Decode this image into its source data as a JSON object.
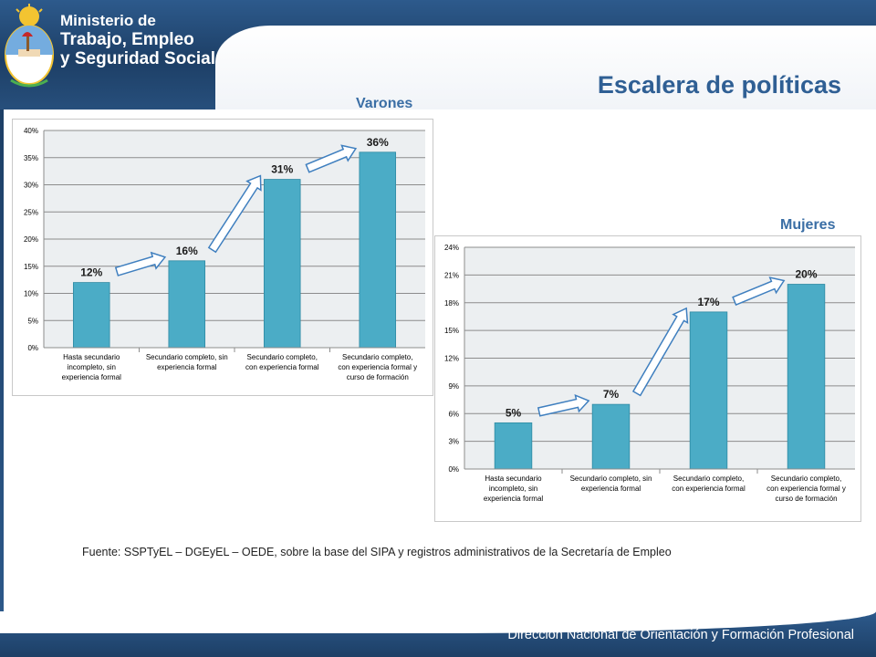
{
  "header": {
    "ministry_line1": "Ministerio de",
    "ministry_line2": "Trabajo, Empleo",
    "ministry_line3": "y Seguridad Social",
    "emblem_icon": "argentina-coat-of-arms-icon"
  },
  "slide": {
    "title": "Escalera de políticas",
    "label_men": "Varones",
    "label_women": "Mujeres",
    "source": "Fuente: SSPTyEL – DGEyEL – OEDE, sobre la base del SIPA y registros administrativos de la Secretaría de Empleo"
  },
  "footer": {
    "text": "Dirección Nacional de Orientación y Formación Profesional"
  },
  "colors": {
    "header_blue": "#1d3f66",
    "title_blue": "#2f5f94",
    "bar": "#4bacc6",
    "plot_bg": "#eceff1"
  },
  "chart_data": [
    {
      "type": "bar",
      "categories": [
        [
          "Hasta secundario",
          "incompleto, sin",
          "experiencia formal"
        ],
        [
          "Secundario completo, sin",
          "experiencia formal"
        ],
        [
          "Secundario completo,",
          "con experiencia formal"
        ],
        [
          "Secundario completo,",
          "con experiencia formal y",
          "curso de formación"
        ]
      ],
      "values": [
        12,
        16,
        31,
        36
      ],
      "data_labels": [
        "12%",
        "16%",
        "31%",
        "36%"
      ],
      "ylim": [
        0,
        40
      ],
      "yticks": [
        "0%",
        "5%",
        "10%",
        "15%",
        "20%",
        "25%",
        "30%",
        "35%",
        "40%"
      ],
      "grid": true
    },
    {
      "type": "bar",
      "categories": [
        [
          "Hasta secundario",
          "incompleto, sin",
          "experiencia formal"
        ],
        [
          "Secundario completo, sin",
          "experiencia formal"
        ],
        [
          "Secundario completo,",
          "con experiencia formal"
        ],
        [
          "Secundario completo,",
          "con experiencia formal y",
          "curso de formación"
        ]
      ],
      "values": [
        5,
        7,
        17,
        20
      ],
      "data_labels": [
        "5%",
        "7%",
        "17%",
        "20%"
      ],
      "ylim": [
        0,
        24
      ],
      "yticks": [
        "0%",
        "3%",
        "6%",
        "9%",
        "12%",
        "15%",
        "18%",
        "21%",
        "24%"
      ],
      "grid": true
    }
  ]
}
